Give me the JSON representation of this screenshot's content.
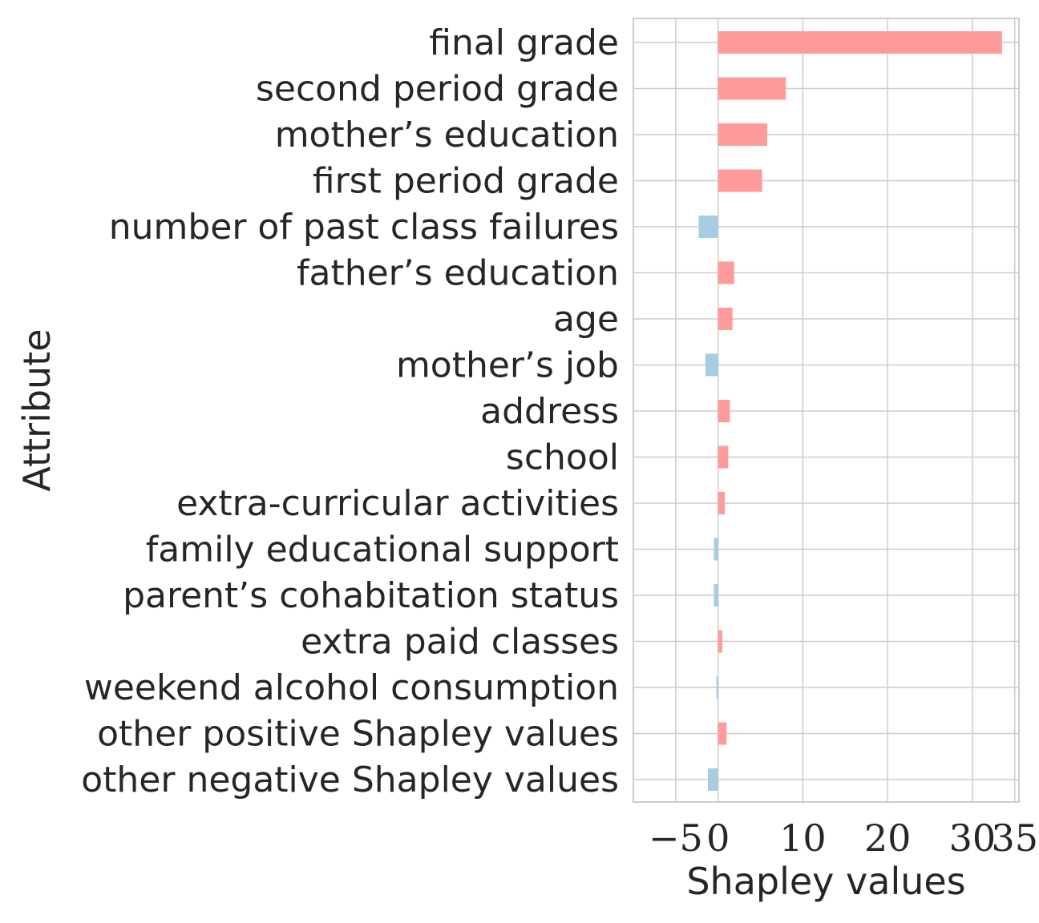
{
  "chart_data": {
    "type": "bar",
    "orientation": "horizontal",
    "xlabel": "Shapley values",
    "ylabel": "Attribute",
    "xlim": [
      -10,
      35.5
    ],
    "xticks": [
      -5,
      0,
      10,
      20,
      30,
      35
    ],
    "xtick_labels": [
      "−5",
      "0",
      "10",
      "20",
      "30",
      "35"
    ],
    "grid": true,
    "colors": {
      "positive": "#ff9b9b",
      "negative": "#a6cde2"
    },
    "categories": [
      "final grade",
      "second period grade",
      "mother’s education",
      "first period grade",
      "number of past class failures",
      "father’s education",
      "age",
      "mother’s job",
      "address",
      "school",
      "extra-curricular activities",
      "family educational support",
      "parent’s cohabitation status",
      "extra paid classes",
      "weekend alcohol consumption",
      "other positive Shapley values",
      "other negative Shapley values"
    ],
    "values": [
      33.5,
      8.0,
      5.8,
      5.2,
      -2.3,
      1.9,
      1.7,
      -1.5,
      1.4,
      1.2,
      0.8,
      -0.5,
      -0.5,
      0.5,
      -0.2,
      1.0,
      -1.2
    ]
  }
}
